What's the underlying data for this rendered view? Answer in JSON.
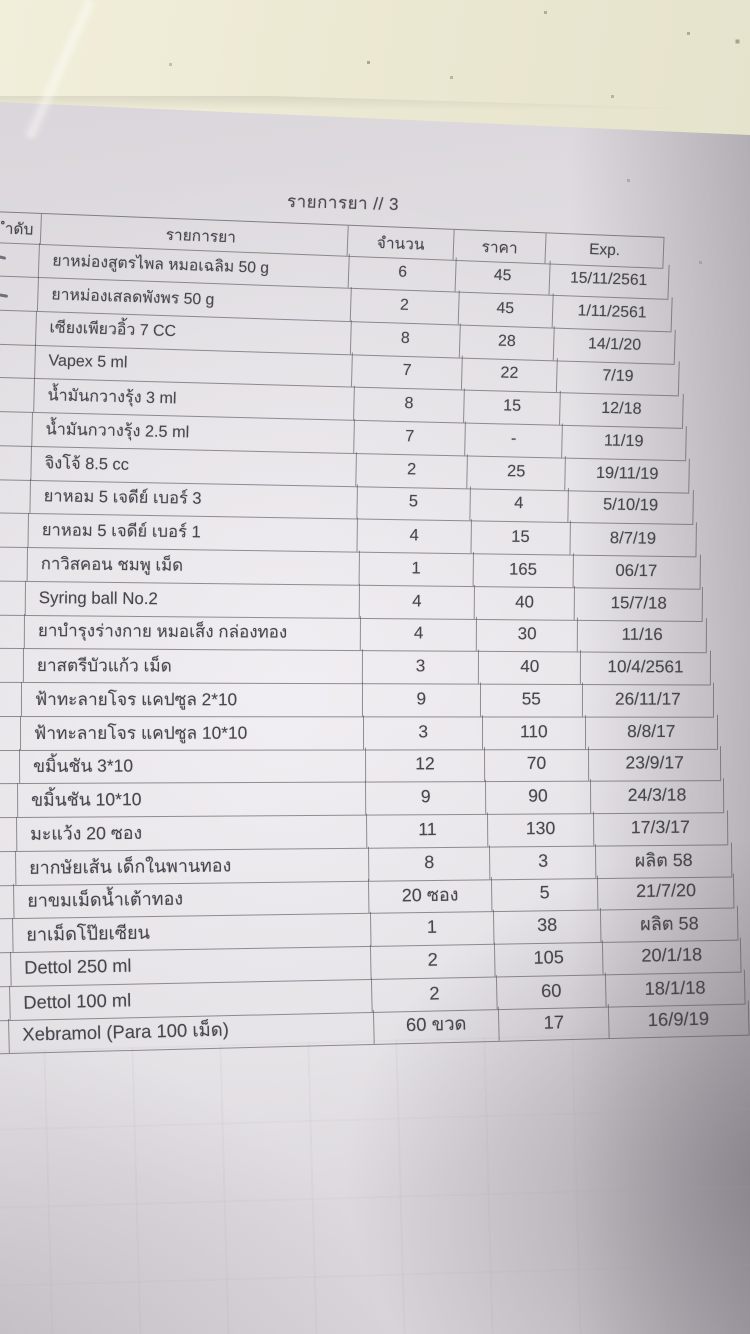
{
  "title": "รายการยา // 3",
  "table": {
    "headers": {
      "index": "ำดับ",
      "name": "รายการยา",
      "qty": "จำนวน",
      "price": "ราคา",
      "exp": "Exp."
    },
    "rows": [
      {
        "name": "ยาหม่องสูตรไพล หมอเฉลิม 50 g",
        "qty": "6",
        "price": "45",
        "exp": "15/11/2561"
      },
      {
        "name": "ยาหม่องเสลดพังพร 50 g",
        "qty": "2",
        "price": "45",
        "exp": "1/11/2561"
      },
      {
        "name": "เซียงเพียวอิ้ว 7 CC",
        "qty": "8",
        "price": "28",
        "exp": "14/1/20"
      },
      {
        "name": "Vapex 5 ml",
        "qty": "7",
        "price": "22",
        "exp": "7/19"
      },
      {
        "name": "น้ำมันกวางรุ้ง 3 ml",
        "qty": "8",
        "price": "15",
        "exp": "12/18"
      },
      {
        "name": "น้ำมันกวางรุ้ง 2.5 ml",
        "qty": "7",
        "price": "-",
        "exp": "11/19"
      },
      {
        "name": "จิงโจ้ 8.5 cc",
        "qty": "2",
        "price": "25",
        "exp": "19/11/19"
      },
      {
        "name": "ยาหอม 5 เจดีย์ เบอร์ 3",
        "qty": "5",
        "price": "4",
        "exp": "5/10/19"
      },
      {
        "name": "ยาหอม 5 เจดีย์ เบอร์ 1",
        "qty": "4",
        "price": "15",
        "exp": "8/7/19"
      },
      {
        "name": "กาวิสคอน ชมพู เม็ด",
        "qty": "1",
        "price": "165",
        "exp": "06/17"
      },
      {
        "name": "Syring ball No.2",
        "qty": "4",
        "price": "40",
        "exp": "15/7/18"
      },
      {
        "name": "ยาบำรุงร่างกาย หมอเส็ง กล่องทอง",
        "qty": "4",
        "price": "30",
        "exp": "11/16"
      },
      {
        "name": "ยาสตรีบัวแก้ว เม็ด",
        "qty": "3",
        "price": "40",
        "exp": "10/4/2561"
      },
      {
        "name": "ฟ้าทะลายโจร แคปซูล 2*10",
        "qty": "9",
        "price": "55",
        "exp": "26/11/17"
      },
      {
        "name": "ฟ้าทะลายโจร แคปซูล 10*10",
        "qty": "3",
        "price": "110",
        "exp": "8/8/17"
      },
      {
        "name": "ขมิ้นชัน 3*10",
        "qty": "12",
        "price": "70",
        "exp": "23/9/17"
      },
      {
        "name": "ขมิ้นชัน 10*10",
        "qty": "9",
        "price": "90",
        "exp": "24/3/18"
      },
      {
        "name": "มะแว้ง 20 ซอง",
        "qty": "11",
        "price": "130",
        "exp": "17/3/17"
      },
      {
        "name": "ยากษัยเส้น เด็กในพานทอง",
        "qty": "8",
        "price": "3",
        "exp": "ผลิต 58"
      },
      {
        "name": "ยาขมเม็ดน้ำเต้าทอง",
        "qty": "20 ซอง",
        "price": "5",
        "exp": "21/7/20"
      },
      {
        "name": "ยาเม็ดโป๊ยเซียน",
        "qty": "1",
        "price": "38",
        "exp": "ผลิต 58"
      },
      {
        "name": "Dettol 250 ml",
        "qty": "2",
        "price": "105",
        "exp": "20/1/18"
      },
      {
        "name": "Dettol 100 ml",
        "qty": "2",
        "price": "60",
        "exp": "18/1/18"
      },
      {
        "name": "Xebramol (Para 100 เม็ด)",
        "qty": "60 ขวด",
        "price": "17",
        "exp": "16/9/19"
      }
    ]
  },
  "colors": {
    "surface": "#ece9d3",
    "paper": "#e2dfe3",
    "ink": "#46464c",
    "table_line": "#56535a"
  }
}
